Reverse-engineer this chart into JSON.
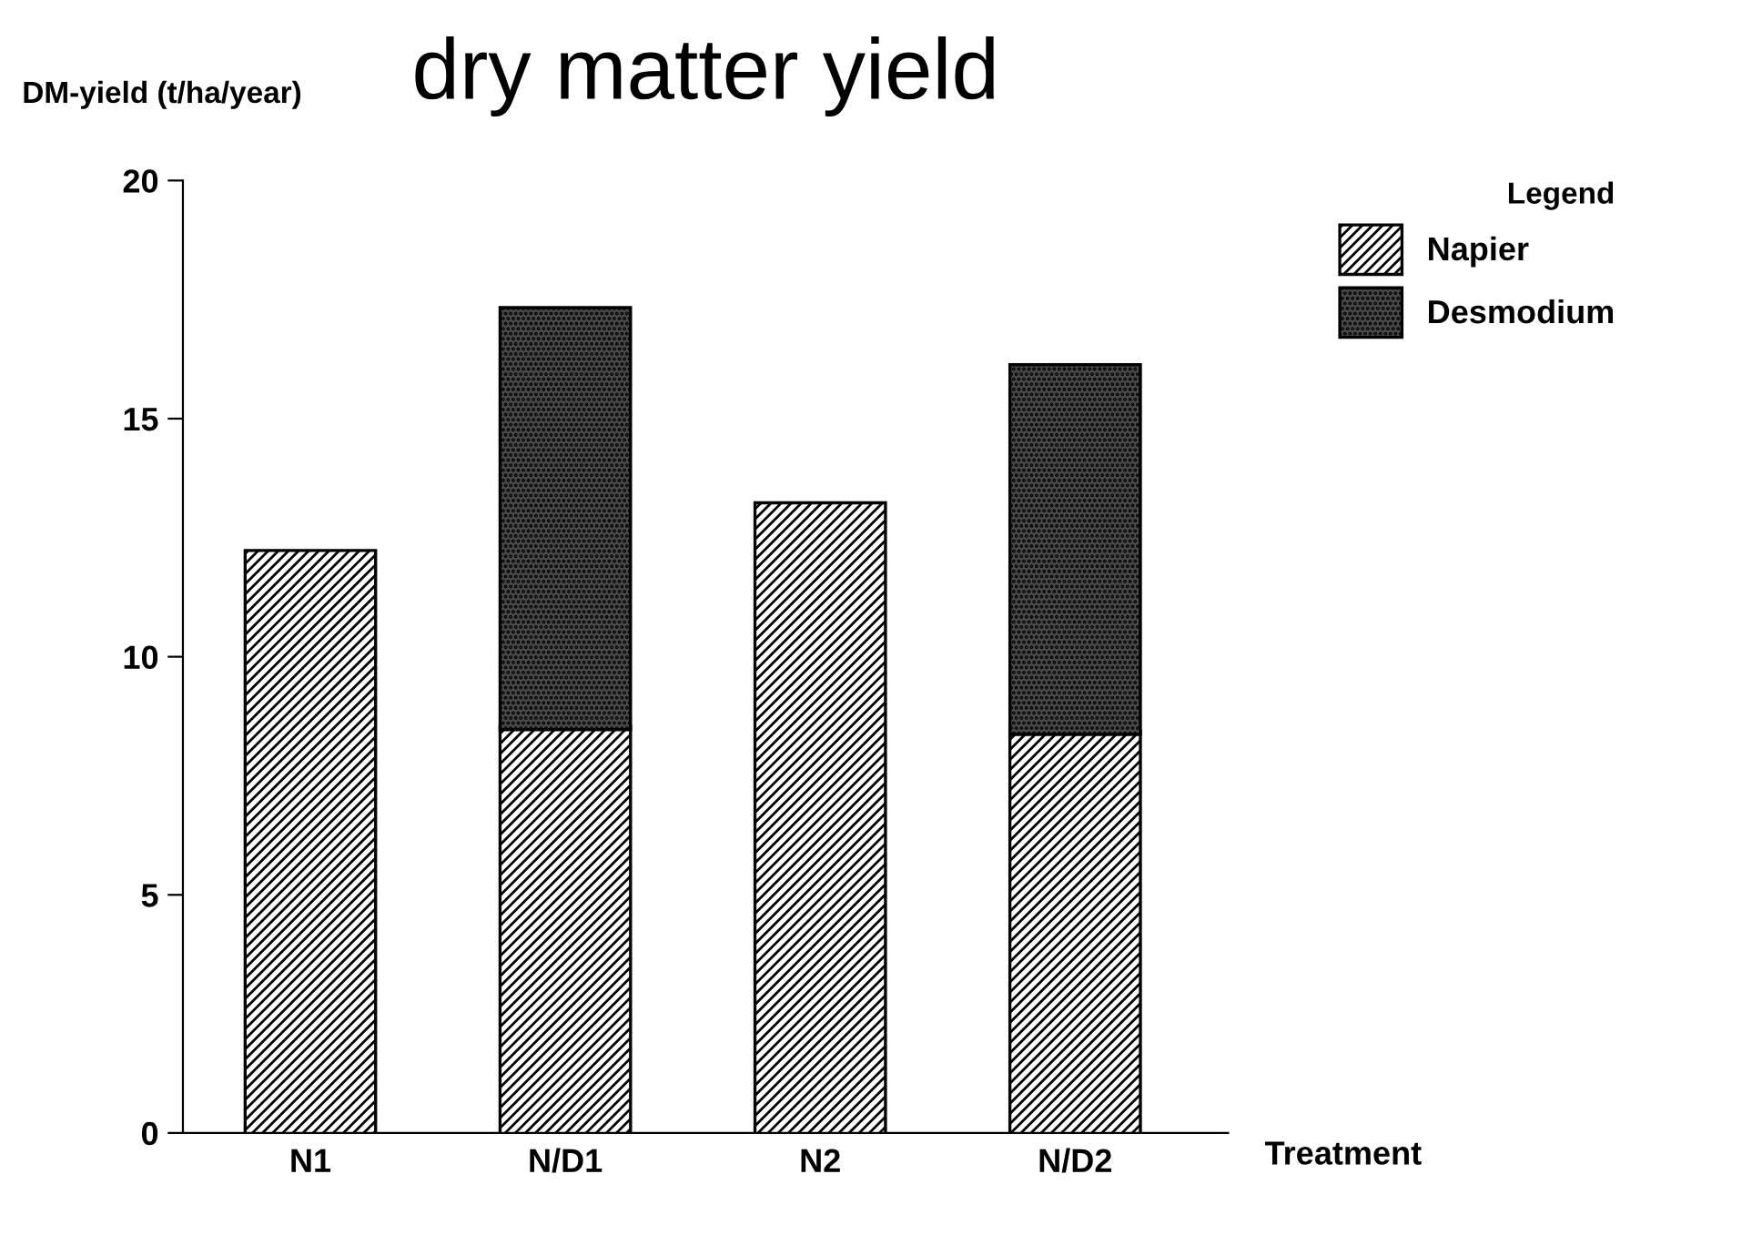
{
  "chart_data": {
    "type": "bar",
    "title": "dry matter yield",
    "xlabel": "Treatment",
    "ylabel": "DM-yield (t/ha/year)",
    "legend_title": "Legend",
    "categories": [
      "N1",
      "N/D1",
      "N2",
      "N/D2"
    ],
    "stacked": true,
    "series": [
      {
        "name": "Napier",
        "color": "#ffffff",
        "values": [
          12.2,
          8.5,
          13.2,
          8.4
        ]
      },
      {
        "name": "Desmodium",
        "color": "#4a4a4a",
        "values": [
          null,
          8.8,
          null,
          7.7
        ]
      }
    ],
    "ylim": [
      0,
      20
    ],
    "yticks": [
      0,
      5,
      10,
      15,
      20
    ],
    "grid": false,
    "legend": "top right"
  }
}
